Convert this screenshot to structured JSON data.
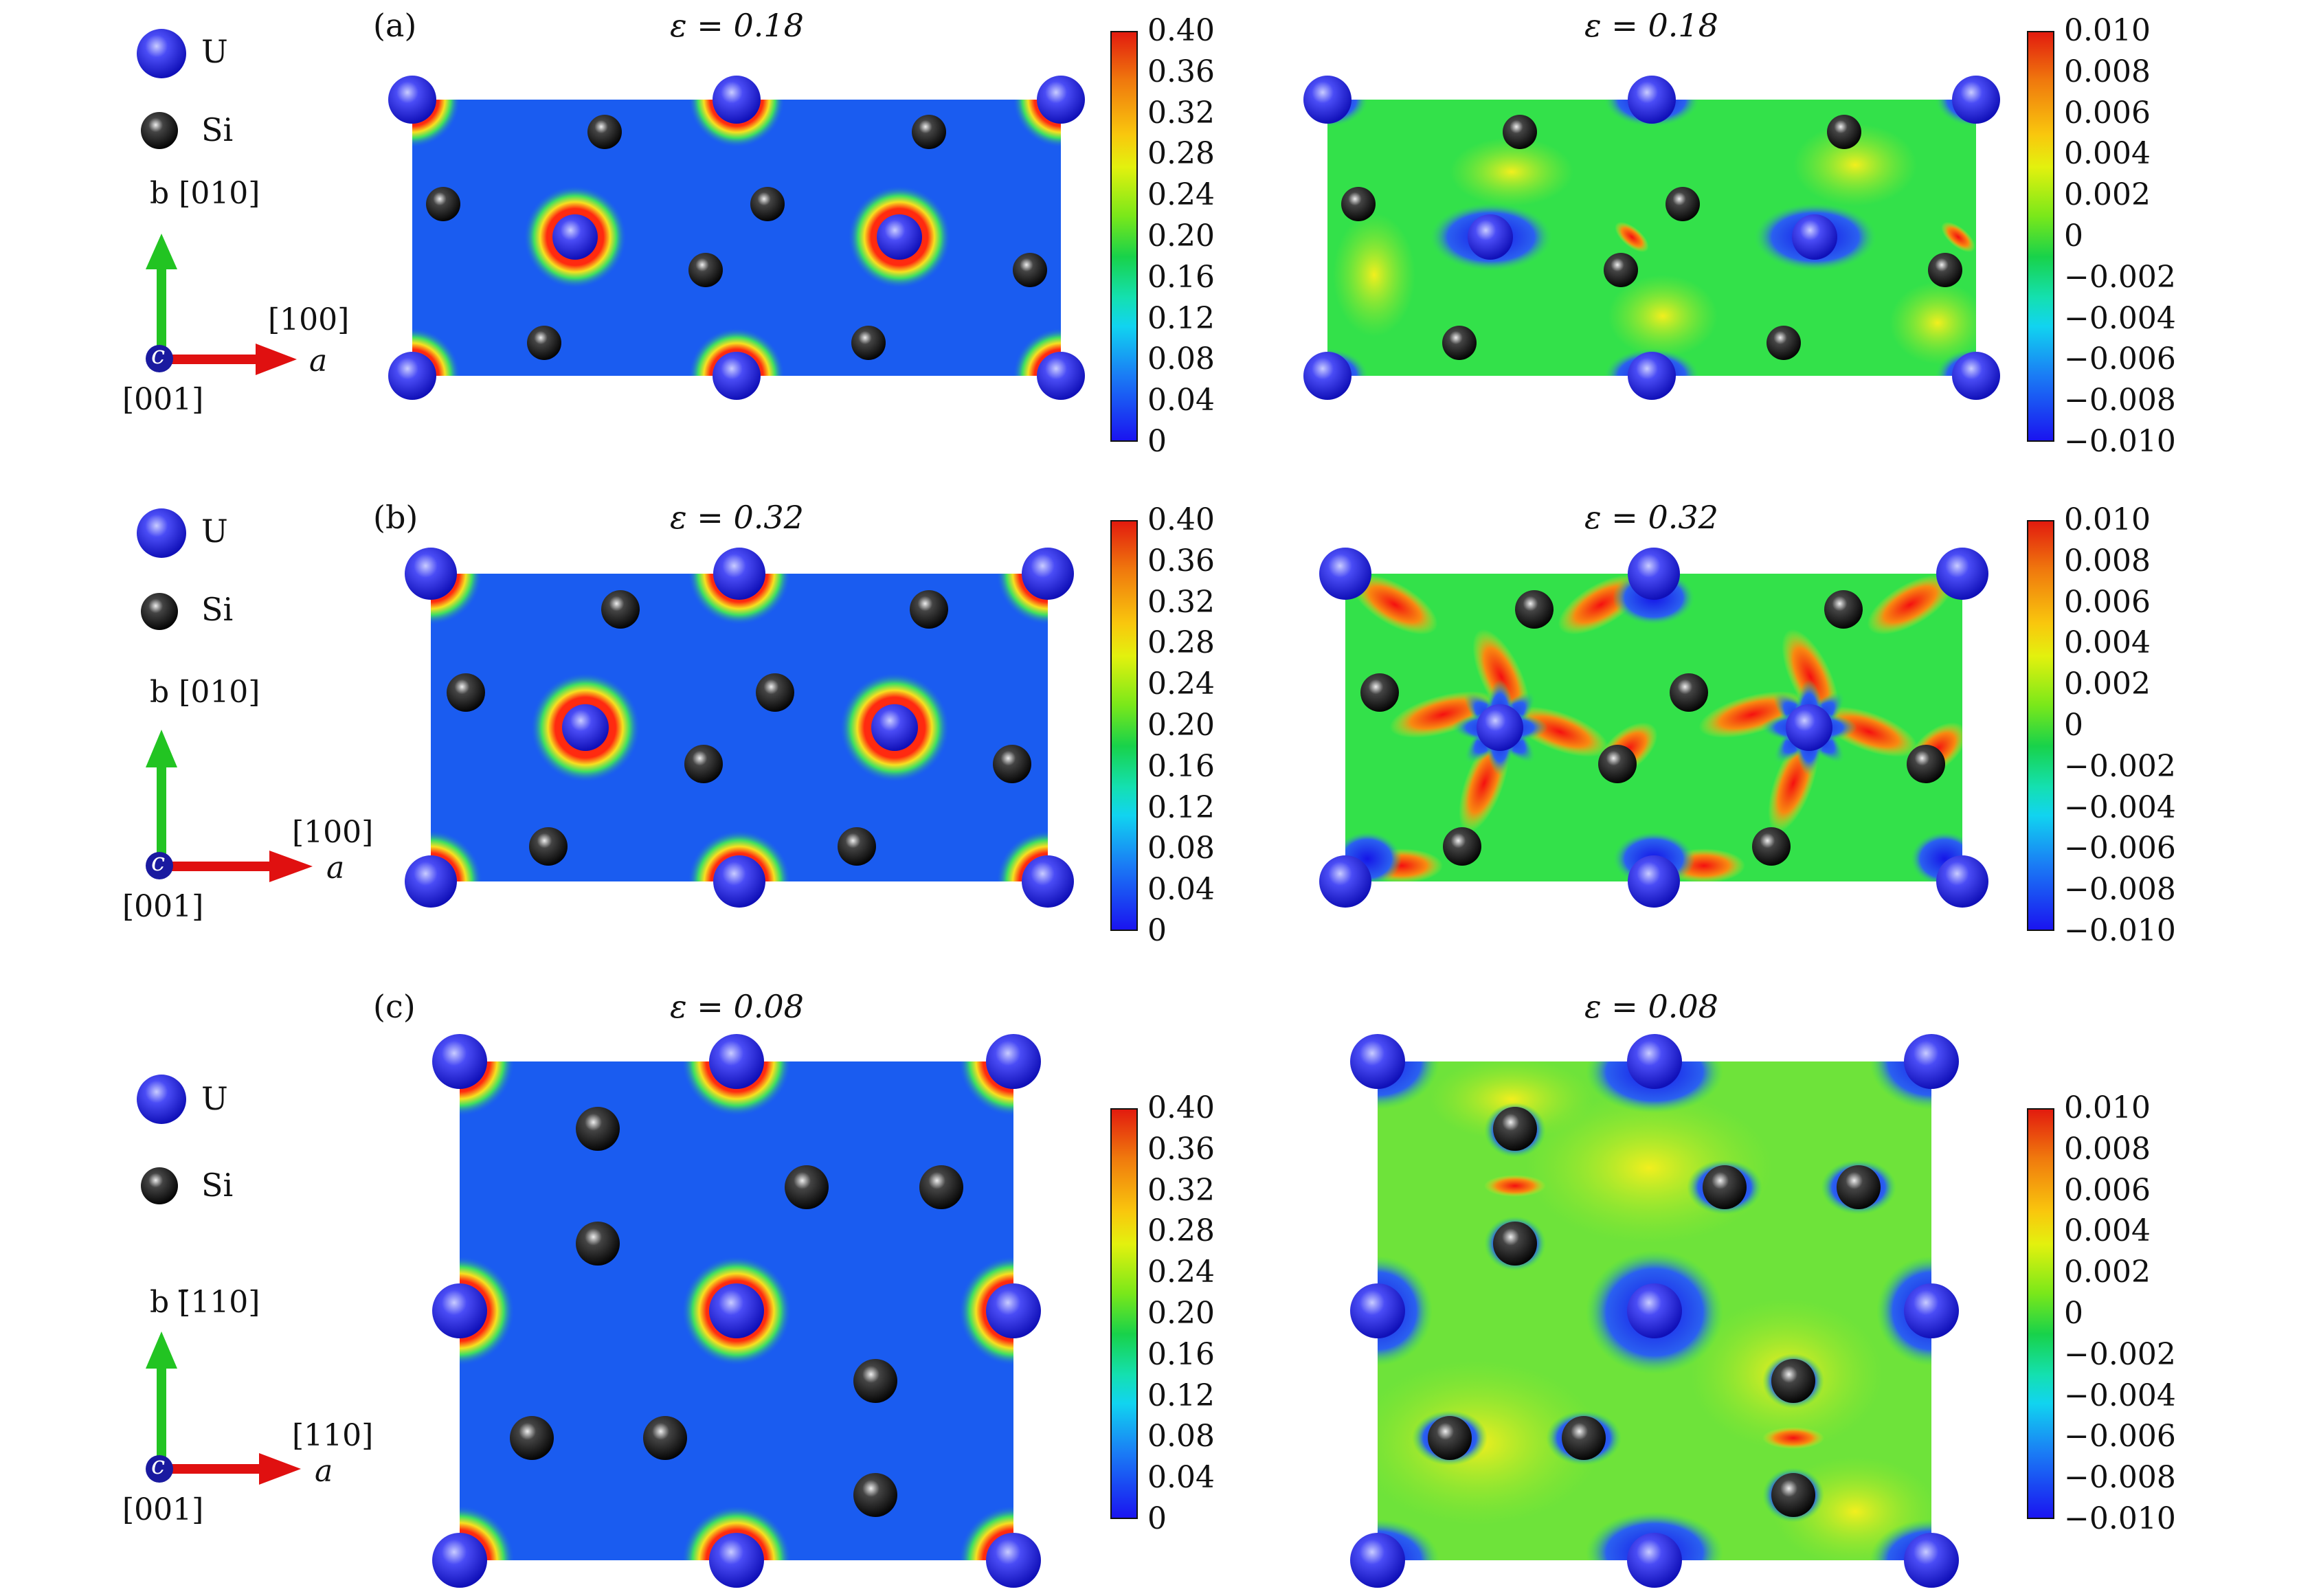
{
  "legend": {
    "u_label": "U",
    "si_label": "Si"
  },
  "axes_ab": {
    "b_label": "b [010]",
    "a_dir": "[100]",
    "a_label": "a",
    "c_label": "c",
    "c_dir": "[001]"
  },
  "axes_c": {
    "b_label": "b [̄110]",
    "a_dir": "[110]",
    "a_label": "a",
    "c_label": "c",
    "c_dir": "[001]"
  },
  "panels": [
    {
      "label": "(a)",
      "strain": "ε = 0.18"
    },
    {
      "label": "(b)",
      "strain": "ε = 0.32"
    },
    {
      "label": "(c)",
      "strain": "ε = 0.08"
    }
  ],
  "colorbar_density": [
    "0.40",
    "0.36",
    "0.32",
    "0.28",
    "0.24",
    "0.20",
    "0.16",
    "0.12",
    "0.08",
    "0.04",
    "0"
  ],
  "colorbar_difference": [
    "0.010",
    "0.008",
    "0.006",
    "0.004",
    "0.002",
    "0",
    "−0.002",
    "−0.004",
    "−0.006",
    "−0.008",
    "−0.010"
  ],
  "colors": {
    "uranium": "#2a2ae6",
    "silicon": "#111111",
    "map_low": "#1a5cf0",
    "map_mid": "#33e14a",
    "axis_a": "#e01010",
    "axis_b": "#22c422"
  }
}
